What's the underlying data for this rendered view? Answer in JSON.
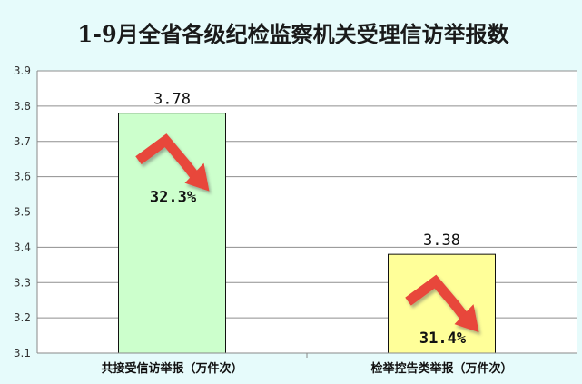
{
  "chart_data": {
    "type": "bar",
    "title": "1-9月全省各级纪检监察机关受理信访举报数",
    "xlabel": "",
    "ylabel": "",
    "ylim": [
      3.1,
      3.9
    ],
    "yticks": [
      "3.1",
      "3.2",
      "3.3",
      "3.4",
      "3.5",
      "3.6",
      "3.7",
      "3.8",
      "3.9"
    ],
    "grid": true,
    "categories": [
      "共接受信访举报（万件次）",
      "检举控告类举报（万件次）"
    ],
    "values": [
      3.78,
      3.38
    ],
    "value_labels": [
      "3.78",
      "3.38"
    ],
    "decline_labels": [
      "32.3%",
      "31.4%"
    ],
    "decline_values": [
      32.3,
      31.4
    ],
    "bar_colors": [
      "#ccffcc",
      "#ffff99"
    ],
    "arrow_color": "#e8463a"
  }
}
